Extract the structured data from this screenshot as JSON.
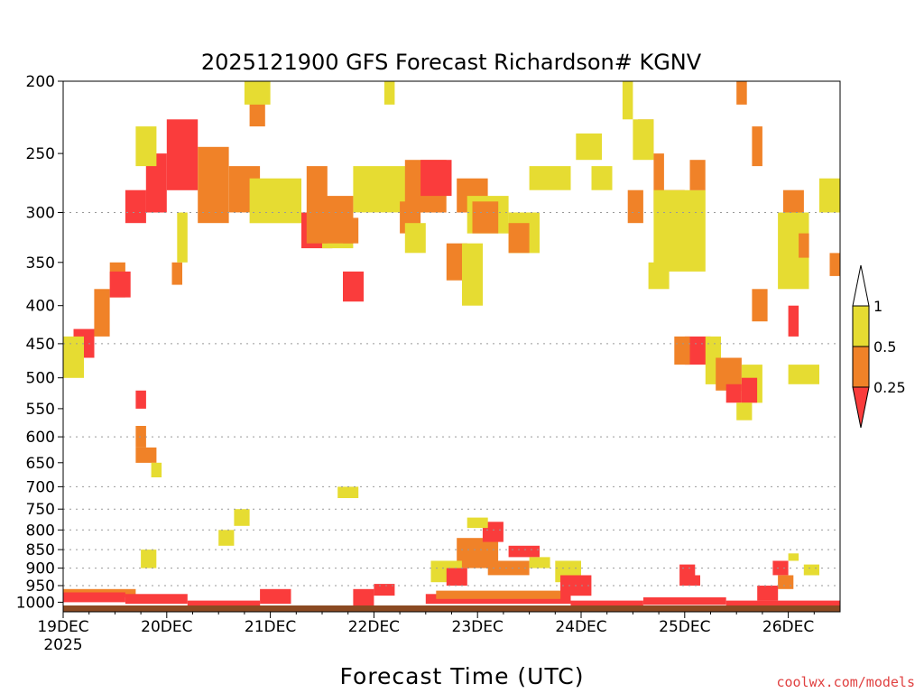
{
  "chart_data": {
    "type": "heatmap",
    "title": "2025121900 GFS Forecast Richardson# KGNV",
    "xlabel": "Forecast Time (UTC)",
    "ylabel": "",
    "x_ticks": [
      {
        "day": 0,
        "label": "19DEC",
        "sub": "2025"
      },
      {
        "day": 1,
        "label": "20DEC"
      },
      {
        "day": 2,
        "label": "21DEC"
      },
      {
        "day": 3,
        "label": "22DEC"
      },
      {
        "day": 4,
        "label": "23DEC"
      },
      {
        "day": 5,
        "label": "24DEC"
      },
      {
        "day": 6,
        "label": "25DEC"
      },
      {
        "day": 7,
        "label": "26DEC"
      }
    ],
    "xlim": [
      0,
      7.5
    ],
    "y_ticks": [
      200,
      250,
      300,
      350,
      400,
      450,
      500,
      550,
      600,
      650,
      700,
      750,
      800,
      850,
      900,
      950,
      1000
    ],
    "ylim": [
      200,
      1030
    ],
    "y_scale": "log",
    "y_inverted": true,
    "grid_levels": [
      300,
      450,
      600,
      700,
      750,
      800,
      850,
      900,
      950
    ],
    "ground_color": "#8a4a22",
    "colorbar": {
      "labels": [
        "1",
        "0.5",
        "0.25"
      ],
      "colors": {
        "white": "#ffffff",
        "yellow": "#e6dc32",
        "orange": "#f08228",
        "red": "#fa3c3c"
      }
    },
    "credit": "coolwx.com/models",
    "credit_color": "#e04040",
    "cells": [
      {
        "t0": 1.0,
        "t1": 1.3,
        "p0": 225,
        "p1": 280,
        "c": "red"
      },
      {
        "t0": 0.8,
        "t1": 1.0,
        "p0": 250,
        "p1": 300,
        "c": "red"
      },
      {
        "t0": 0.7,
        "t1": 0.9,
        "p0": 230,
        "p1": 260,
        "c": "yellow"
      },
      {
        "t0": 0.6,
        "t1": 0.8,
        "p0": 280,
        "p1": 310,
        "c": "red"
      },
      {
        "t0": 1.3,
        "t1": 1.6,
        "p0": 245,
        "p1": 310,
        "c": "orange"
      },
      {
        "t0": 1.6,
        "t1": 1.9,
        "p0": 260,
        "p1": 300,
        "c": "orange"
      },
      {
        "t0": 1.8,
        "t1": 2.3,
        "p0": 270,
        "p1": 310,
        "c": "yellow"
      },
      {
        "t0": 2.35,
        "t1": 2.55,
        "p0": 260,
        "p1": 320,
        "c": "orange"
      },
      {
        "t0": 2.3,
        "t1": 2.6,
        "p0": 300,
        "p1": 335,
        "c": "red"
      },
      {
        "t0": 2.5,
        "t1": 2.8,
        "p0": 300,
        "p1": 335,
        "c": "yellow"
      },
      {
        "t0": 2.8,
        "t1": 3.4,
        "p0": 260,
        "p1": 300,
        "c": "yellow"
      },
      {
        "t0": 2.5,
        "t1": 2.8,
        "p0": 285,
        "p1": 330,
        "c": "orange"
      },
      {
        "t0": 1.05,
        "t1": 1.15,
        "p0": 350,
        "p1": 375,
        "c": "orange"
      },
      {
        "t0": 1.1,
        "t1": 1.2,
        "p0": 300,
        "p1": 350,
        "c": "yellow"
      },
      {
        "t0": 1.8,
        "t1": 1.95,
        "p0": 200,
        "p1": 230,
        "c": "orange"
      },
      {
        "t0": 1.75,
        "t1": 2.0,
        "p0": 200,
        "p1": 215,
        "c": "yellow"
      },
      {
        "t0": 2.35,
        "t1": 2.55,
        "p0": 300,
        "p1": 330,
        "c": "orange"
      },
      {
        "t0": 2.7,
        "t1": 2.85,
        "p0": 305,
        "p1": 330,
        "c": "orange"
      },
      {
        "t0": 3.3,
        "t1": 3.7,
        "p0": 255,
        "p1": 300,
        "c": "orange"
      },
      {
        "t0": 3.45,
        "t1": 3.75,
        "p0": 255,
        "p1": 285,
        "c": "red"
      },
      {
        "t0": 3.8,
        "t1": 4.1,
        "p0": 270,
        "p1": 300,
        "c": "orange"
      },
      {
        "t0": 3.9,
        "t1": 4.3,
        "p0": 285,
        "p1": 320,
        "c": "yellow"
      },
      {
        "t0": 3.25,
        "t1": 3.45,
        "p0": 290,
        "p1": 320,
        "c": "orange"
      },
      {
        "t0": 3.3,
        "t1": 3.5,
        "p0": 310,
        "p1": 340,
        "c": "yellow"
      },
      {
        "t0": 3.7,
        "t1": 3.9,
        "p0": 330,
        "p1": 370,
        "c": "orange"
      },
      {
        "t0": 3.85,
        "t1": 4.05,
        "p0": 330,
        "p1": 400,
        "c": "yellow"
      },
      {
        "t0": 3.95,
        "t1": 4.2,
        "p0": 290,
        "p1": 320,
        "c": "orange"
      },
      {
        "t0": 4.3,
        "t1": 4.6,
        "p0": 300,
        "p1": 340,
        "c": "yellow"
      },
      {
        "t0": 4.3,
        "t1": 4.5,
        "p0": 310,
        "p1": 340,
        "c": "orange"
      },
      {
        "t0": 4.5,
        "t1": 4.9,
        "p0": 260,
        "p1": 280,
        "c": "yellow"
      },
      {
        "t0": 4.95,
        "t1": 5.2,
        "p0": 235,
        "p1": 255,
        "c": "yellow"
      },
      {
        "t0": 5.1,
        "t1": 5.3,
        "p0": 260,
        "p1": 280,
        "c": "yellow"
      },
      {
        "t0": 5.4,
        "t1": 5.5,
        "p0": 200,
        "p1": 225,
        "c": "yellow"
      },
      {
        "t0": 5.55,
        "t1": 5.7,
        "p0": 225,
        "p1": 250,
        "c": "orange"
      },
      {
        "t0": 5.5,
        "t1": 5.7,
        "p0": 225,
        "p1": 255,
        "c": "yellow"
      },
      {
        "t0": 5.7,
        "t1": 5.8,
        "p0": 250,
        "p1": 300,
        "c": "orange"
      },
      {
        "t0": 5.8,
        "t1": 6.0,
        "p0": 280,
        "p1": 340,
        "c": "red"
      },
      {
        "t0": 5.7,
        "t1": 6.2,
        "p0": 280,
        "p1": 360,
        "c": "yellow"
      },
      {
        "t0": 5.45,
        "t1": 5.6,
        "p0": 280,
        "p1": 310,
        "c": "orange"
      },
      {
        "t0": 5.65,
        "t1": 5.85,
        "p0": 350,
        "p1": 380,
        "c": "yellow"
      },
      {
        "t0": 6.5,
        "t1": 6.6,
        "p0": 200,
        "p1": 215,
        "c": "orange"
      },
      {
        "t0": 6.65,
        "t1": 6.75,
        "p0": 230,
        "p1": 260,
        "c": "orange"
      },
      {
        "t0": 6.05,
        "t1": 6.2,
        "p0": 255,
        "p1": 280,
        "c": "orange"
      },
      {
        "t0": 6.95,
        "t1": 7.15,
        "p0": 280,
        "p1": 310,
        "c": "orange"
      },
      {
        "t0": 6.95,
        "t1": 7.15,
        "p0": 300,
        "p1": 330,
        "c": "yellow"
      },
      {
        "t0": 6.9,
        "t1": 7.2,
        "p0": 300,
        "p1": 380,
        "c": "yellow"
      },
      {
        "t0": 7.1,
        "t1": 7.2,
        "p0": 320,
        "p1": 345,
        "c": "orange"
      },
      {
        "t0": 7.3,
        "t1": 7.5,
        "p0": 270,
        "p1": 300,
        "c": "yellow"
      },
      {
        "t0": 7.4,
        "t1": 7.5,
        "p0": 340,
        "p1": 365,
        "c": "orange"
      },
      {
        "t0": 6.65,
        "t1": 6.8,
        "p0": 380,
        "p1": 420,
        "c": "orange"
      },
      {
        "t0": 7.0,
        "t1": 7.1,
        "p0": 400,
        "p1": 440,
        "c": "red"
      },
      {
        "t0": 7.0,
        "t1": 7.3,
        "p0": 480,
        "p1": 510,
        "c": "yellow"
      },
      {
        "t0": 6.0,
        "t1": 6.25,
        "p0": 440,
        "p1": 480,
        "c": "red"
      },
      {
        "t0": 5.9,
        "t1": 6.05,
        "p0": 440,
        "p1": 480,
        "c": "orange"
      },
      {
        "t0": 6.2,
        "t1": 6.35,
        "p0": 440,
        "p1": 510,
        "c": "yellow"
      },
      {
        "t0": 6.3,
        "t1": 6.55,
        "p0": 470,
        "p1": 520,
        "c": "orange"
      },
      {
        "t0": 6.4,
        "t1": 6.55,
        "p0": 510,
        "p1": 540,
        "c": "red"
      },
      {
        "t0": 6.55,
        "t1": 6.75,
        "p0": 480,
        "p1": 540,
        "c": "yellow"
      },
      {
        "t0": 6.55,
        "t1": 6.7,
        "p0": 500,
        "p1": 540,
        "c": "red"
      },
      {
        "t0": 6.5,
        "t1": 6.65,
        "p0": 540,
        "p1": 570,
        "c": "yellow"
      },
      {
        "t0": 0.1,
        "t1": 0.3,
        "p0": 430,
        "p1": 470,
        "c": "red"
      },
      {
        "t0": 0.3,
        "t1": 0.45,
        "p0": 380,
        "p1": 440,
        "c": "orange"
      },
      {
        "t0": 0.45,
        "t1": 0.6,
        "p0": 350,
        "p1": 390,
        "c": "orange"
      },
      {
        "t0": 0.45,
        "t1": 0.65,
        "p0": 360,
        "p1": 390,
        "c": "red"
      },
      {
        "t0": 0.0,
        "t1": 0.2,
        "p0": 440,
        "p1": 500,
        "c": "yellow"
      },
      {
        "t0": 0.7,
        "t1": 0.8,
        "p0": 520,
        "p1": 550,
        "c": "red"
      },
      {
        "t0": 0.7,
        "t1": 0.8,
        "p0": 580,
        "p1": 620,
        "c": "orange"
      },
      {
        "t0": 0.7,
        "t1": 0.9,
        "p0": 620,
        "p1": 650,
        "c": "orange"
      },
      {
        "t0": 0.85,
        "t1": 0.95,
        "p0": 650,
        "p1": 680,
        "c": "yellow"
      },
      {
        "t0": 1.5,
        "t1": 1.65,
        "p0": 800,
        "p1": 840,
        "c": "yellow"
      },
      {
        "t0": 1.65,
        "t1": 1.8,
        "p0": 750,
        "p1": 790,
        "c": "yellow"
      },
      {
        "t0": 2.65,
        "t1": 2.85,
        "p0": 700,
        "p1": 725,
        "c": "yellow"
      },
      {
        "t0": 2.7,
        "t1": 2.9,
        "p0": 360,
        "p1": 395,
        "c": "red"
      },
      {
        "t0": 3.1,
        "t1": 3.2,
        "p0": 200,
        "p1": 215,
        "c": "yellow"
      },
      {
        "t0": 0.75,
        "t1": 0.9,
        "p0": 850,
        "p1": 900,
        "c": "yellow"
      },
      {
        "t0": 3.8,
        "t1": 4.2,
        "p0": 820,
        "p1": 900,
        "c": "orange"
      },
      {
        "t0": 4.05,
        "t1": 4.25,
        "p0": 780,
        "p1": 830,
        "c": "red"
      },
      {
        "t0": 3.9,
        "t1": 4.1,
        "p0": 770,
        "p1": 795,
        "c": "yellow"
      },
      {
        "t0": 4.3,
        "t1": 4.6,
        "p0": 840,
        "p1": 870,
        "c": "red"
      },
      {
        "t0": 4.1,
        "t1": 4.5,
        "p0": 880,
        "p1": 920,
        "c": "orange"
      },
      {
        "t0": 4.5,
        "t1": 4.7,
        "p0": 870,
        "p1": 900,
        "c": "yellow"
      },
      {
        "t0": 3.55,
        "t1": 3.85,
        "p0": 880,
        "p1": 940,
        "c": "yellow"
      },
      {
        "t0": 3.7,
        "t1": 3.9,
        "p0": 900,
        "p1": 950,
        "c": "red"
      },
      {
        "t0": 4.75,
        "t1": 5.0,
        "p0": 880,
        "p1": 940,
        "c": "yellow"
      },
      {
        "t0": 4.8,
        "t1": 5.1,
        "p0": 920,
        "p1": 980,
        "c": "red"
      },
      {
        "t0": 5.95,
        "t1": 6.1,
        "p0": 890,
        "p1": 950,
        "c": "red"
      },
      {
        "t0": 6.05,
        "t1": 6.15,
        "p0": 920,
        "p1": 950,
        "c": "red"
      },
      {
        "t0": 6.85,
        "t1": 7.0,
        "p0": 880,
        "p1": 920,
        "c": "red"
      },
      {
        "t0": 6.9,
        "t1": 7.05,
        "p0": 920,
        "p1": 960,
        "c": "orange"
      },
      {
        "t0": 7.15,
        "t1": 7.3,
        "p0": 890,
        "p1": 920,
        "c": "yellow"
      },
      {
        "t0": 7.0,
        "t1": 7.1,
        "p0": 860,
        "p1": 880,
        "c": "yellow"
      },
      {
        "t0": 6.7,
        "t1": 6.9,
        "p0": 950,
        "p1": 995,
        "c": "red"
      },
      {
        "t0": 0.0,
        "t1": 0.7,
        "p0": 960,
        "p1": 985,
        "c": "orange"
      },
      {
        "t0": 0.0,
        "t1": 0.6,
        "p0": 970,
        "p1": 1000,
        "c": "red"
      },
      {
        "t0": 0.6,
        "t1": 1.2,
        "p0": 975,
        "p1": 1005,
        "c": "red"
      },
      {
        "t0": 1.2,
        "t1": 1.9,
        "p0": 995,
        "p1": 1010,
        "c": "red"
      },
      {
        "t0": 1.9,
        "t1": 2.2,
        "p0": 960,
        "p1": 1005,
        "c": "red"
      },
      {
        "t0": 2.8,
        "t1": 3.0,
        "p0": 960,
        "p1": 1010,
        "c": "red"
      },
      {
        "t0": 3.0,
        "t1": 3.2,
        "p0": 945,
        "p1": 980,
        "c": "red"
      },
      {
        "t0": 3.5,
        "t1": 4.9,
        "p0": 975,
        "p1": 1005,
        "c": "red"
      },
      {
        "t0": 3.6,
        "t1": 4.8,
        "p0": 965,
        "p1": 990,
        "c": "orange"
      },
      {
        "t0": 4.9,
        "t1": 5.6,
        "p0": 995,
        "p1": 1010,
        "c": "red"
      },
      {
        "t0": 5.6,
        "t1": 6.4,
        "p0": 985,
        "p1": 1008,
        "c": "red"
      },
      {
        "t0": 6.4,
        "t1": 7.5,
        "p0": 995,
        "p1": 1010,
        "c": "red"
      }
    ]
  }
}
